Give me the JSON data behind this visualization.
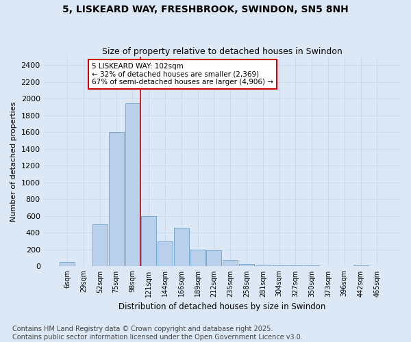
{
  "title1": "5, LISKEARD WAY, FRESHBROOK, SWINDON, SN5 8NH",
  "title2": "Size of property relative to detached houses in Swindon",
  "xlabel": "Distribution of detached houses by size in Swindon",
  "ylabel": "Number of detached properties",
  "footer1": "Contains HM Land Registry data © Crown copyright and database right 2025.",
  "footer2": "Contains public sector information licensed under the Open Government Licence v3.0.",
  "bar_labels": [
    "6sqm",
    "29sqm",
    "52sqm",
    "75sqm",
    "98sqm",
    "121sqm",
    "144sqm",
    "166sqm",
    "189sqm",
    "212sqm",
    "235sqm",
    "258sqm",
    "281sqm",
    "304sqm",
    "327sqm",
    "350sqm",
    "373sqm",
    "396sqm",
    "442sqm",
    "465sqm"
  ],
  "bar_values": [
    55,
    0,
    500,
    1600,
    1950,
    600,
    300,
    460,
    200,
    190,
    75,
    30,
    20,
    15,
    10,
    8,
    5,
    0,
    8,
    5
  ],
  "bar_color": "#b8d0ea",
  "bar_edge_color": "#6fa0c8",
  "grid_color": "#ccdaeb",
  "background_color": "#dce8f5",
  "vline_color": "#cc0000",
  "annotation_text": "5 LISKEARD WAY: 102sqm\n← 32% of detached houses are smaller (2,369)\n67% of semi-detached houses are larger (4,906) →",
  "annotation_box_color": "#ffffff",
  "annotation_box_edge_color": "#cc0000",
  "ylim": [
    0,
    2500
  ],
  "yticks": [
    0,
    200,
    400,
    600,
    800,
    1000,
    1200,
    1400,
    1600,
    1800,
    2000,
    2200,
    2400
  ],
  "title_fontsize": 10,
  "subtitle_fontsize": 9,
  "annotation_fontsize": 7.5,
  "footer_fontsize": 7,
  "ylabel_fontsize": 8,
  "xlabel_fontsize": 8.5
}
